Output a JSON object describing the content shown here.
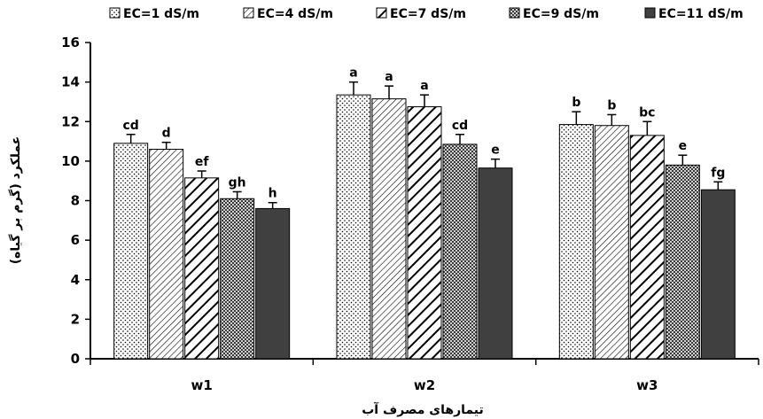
{
  "chart_data": {
    "type": "bar",
    "title": "",
    "xlabel": "تیمارهای مصرف آب",
    "ylabel": "عملکرد (گرم بر گیاه)",
    "ylim": [
      0,
      16
    ],
    "yticks": [
      0,
      2,
      4,
      6,
      8,
      10,
      12,
      14,
      16
    ],
    "categories": [
      "w1",
      "w2",
      "w3"
    ],
    "grid": false,
    "legend_position": "top",
    "error_bars": true,
    "series": [
      {
        "name": "EC=1 dS/m",
        "pattern": "dots",
        "values": [
          10.9,
          13.35,
          11.85
        ],
        "errors": [
          0.45,
          0.65,
          0.65
        ],
        "labels": [
          "cd",
          "a",
          "b"
        ]
      },
      {
        "name": "EC=4 dS/m",
        "pattern": "thin-diag",
        "values": [
          10.6,
          13.15,
          11.8
        ],
        "errors": [
          0.35,
          0.65,
          0.55
        ],
        "labels": [
          "d",
          "a",
          "b"
        ]
      },
      {
        "name": "EC=7 dS/m",
        "pattern": "wide-diag",
        "values": [
          9.15,
          12.75,
          11.3
        ],
        "errors": [
          0.35,
          0.6,
          0.7
        ],
        "labels": [
          "ef",
          "a",
          "bc"
        ]
      },
      {
        "name": "EC=9 dS/m",
        "pattern": "checker",
        "values": [
          8.1,
          10.85,
          9.8
        ],
        "errors": [
          0.35,
          0.5,
          0.5
        ],
        "labels": [
          "gh",
          "cd",
          "e"
        ]
      },
      {
        "name": "EC=11 dS/m",
        "pattern": "solid",
        "values": [
          7.6,
          9.65,
          8.55
        ],
        "errors": [
          0.3,
          0.45,
          0.4
        ],
        "labels": [
          "h",
          "e",
          "fg"
        ]
      }
    ]
  }
}
